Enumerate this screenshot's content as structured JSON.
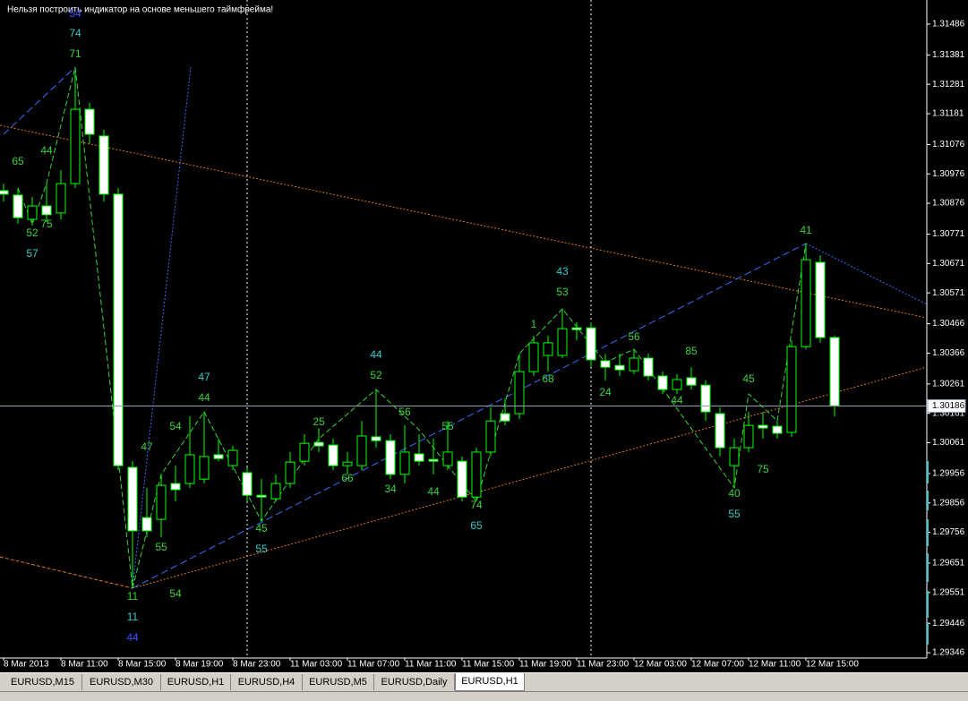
{
  "warning": "Нельзя построить индикатор на основе меньшего таймфрейма!",
  "chart_data": {
    "type": "candlestick",
    "categories": [
      "8 Mar 2013",
      null,
      null,
      null,
      "8 Mar 11:00",
      null,
      null,
      null,
      "8 Mar 15:00",
      null,
      null,
      null,
      "8 Mar 19:00",
      null,
      null,
      null,
      "8 Mar 23:00",
      null,
      null,
      null,
      "11 Mar 03:00",
      null,
      null,
      null,
      "11 Mar 07:00",
      null,
      null,
      null,
      "11 Mar 11:00",
      null,
      null,
      null,
      "11 Mar 15:00",
      null,
      null,
      null,
      "11 Mar 19:00",
      null,
      null,
      null,
      "11 Mar 23:00",
      null,
      null,
      null,
      "12 Mar 03:00",
      null,
      null,
      null,
      "12 Mar 07:00",
      null,
      null,
      null,
      "12 Mar 11:00",
      null,
      null,
      null,
      "12 Mar 15:00",
      null,
      null
    ],
    "open": [
      1.30919,
      1.30904,
      1.30821,
      1.30867,
      1.30843,
      1.30943,
      1.31196,
      1.31105,
      1.30907,
      1.29977,
      1.29806,
      1.298,
      1.29922,
      1.29922,
      1.29937,
      1.3002,
      1.29983,
      1.29959,
      1.29882,
      1.2987,
      1.29922,
      1.29998,
      1.30062,
      1.30053,
      1.29983,
      1.29983,
      1.30081,
      1.30068,
      1.29953,
      1.30023,
      1.30004,
      1.29983,
      1.29998,
      1.29876,
      1.30029,
      1.3016,
      1.3016,
      1.30303,
      1.30358,
      1.30358,
      1.30452,
      1.30452,
      1.3034,
      1.30324,
      1.30306,
      1.30349,
      1.30288,
      1.30242,
      1.30282,
      1.30257,
      1.3016,
      1.29983,
      1.30044,
      1.3012,
      1.30117,
      1.30096,
      1.30388,
      1.30675,
      1.30419
    ],
    "high": [
      1.30943,
      1.30928,
      1.30897,
      1.30943,
      1.30989,
      1.31324,
      1.31217,
      1.31126,
      1.30928,
      1.29998,
      1.29907,
      1.29953,
      1.29983,
      1.30151,
      1.30166,
      1.30075,
      1.3005,
      1.29977,
      1.29937,
      1.29953,
      1.30029,
      1.3009,
      1.30111,
      1.30075,
      1.30029,
      1.30135,
      1.30242,
      1.3009,
      1.3012,
      1.3009,
      1.30075,
      1.30135,
      1.30014,
      1.30044,
      1.30181,
      1.30212,
      1.30364,
      1.30425,
      1.30425,
      1.30516,
      1.30471,
      1.30471,
      1.30364,
      1.30364,
      1.30379,
      1.30364,
      1.30303,
      1.30294,
      1.30318,
      1.30273,
      1.30181,
      1.30075,
      1.30166,
      1.30166,
      1.30135,
      1.3041,
      1.30739,
      1.30699,
      1.30425
    ],
    "low": [
      1.30882,
      1.30806,
      1.308,
      1.30812,
      1.30821,
      1.30928,
      1.3108,
      1.30882,
      1.29968,
      1.29566,
      1.29739,
      1.29739,
      1.29861,
      1.29907,
      1.29922,
      1.29998,
      1.29968,
      1.29861,
      1.29794,
      1.29861,
      1.29907,
      1.29983,
      1.30029,
      1.29968,
      1.29953,
      1.29968,
      1.30044,
      1.29937,
      1.29922,
      1.29983,
      1.29953,
      1.29968,
      1.29861,
      1.29861,
      1.30014,
      1.3012,
      1.30142,
      1.30288,
      1.30303,
      1.30349,
      1.3041,
      1.30318,
      1.30273,
      1.30288,
      1.30294,
      1.30273,
      1.30227,
      1.30227,
      1.30242,
      1.30135,
      1.30014,
      1.29907,
      1.30029,
      1.30075,
      1.30075,
      1.30081,
      1.30379,
      1.30401,
      1.30151
    ],
    "close": [
      1.30907,
      1.30827,
      1.30867,
      1.30837,
      1.30943,
      1.31196,
      1.31111,
      1.30907,
      1.29983,
      1.29761,
      1.29761,
      1.29916,
      1.29901,
      1.3002,
      1.30014,
      1.30007,
      1.30035,
      1.29882,
      1.29876,
      1.29922,
      1.29995,
      1.30059,
      1.3005,
      1.29983,
      1.29995,
      1.30084,
      1.30068,
      1.29953,
      1.30029,
      1.29998,
      1.29998,
      1.30029,
      1.29876,
      1.30029,
      1.30135,
      1.30135,
      1.30303,
      1.30401,
      1.30401,
      1.30449,
      1.30446,
      1.30343,
      1.30318,
      1.30309,
      1.30349,
      1.30288,
      1.30242,
      1.30276,
      1.30257,
      1.30166,
      1.30044,
      1.30044,
      1.3012,
      1.30111,
      1.30093,
      1.30388,
      1.30684,
      1.30419,
      1.30187
    ],
    "ylim": [
      1.29328,
      1.31568
    ],
    "yticks": [
      1.31486,
      1.31381,
      1.31281,
      1.31181,
      1.31076,
      1.30976,
      1.30876,
      1.30771,
      1.30671,
      1.30571,
      1.30466,
      1.30366,
      1.30261,
      1.30161,
      1.30061,
      1.29956,
      1.29856,
      1.29756,
      1.29651,
      1.29551,
      1.29446,
      1.29346
    ],
    "current_price": 1.30186,
    "annotations": [
      "54",
      "74",
      "71",
      "65",
      "44",
      "52",
      "75",
      "57",
      "47",
      "55",
      "11",
      "11",
      "44",
      "54",
      "54",
      "47",
      "44",
      "45",
      "55",
      "25",
      "66",
      "44",
      "52",
      "56",
      "34",
      "44",
      "55",
      "74",
      "65",
      "1",
      "68",
      "43",
      "53",
      "24",
      "56",
      "85",
      "44",
      "45",
      "40",
      "55",
      "75",
      "41"
    ]
  },
  "tabs": [
    "EURUSD,M15",
    "EURUSD,M30",
    "EURUSD,H1",
    "EURUSD,H4",
    "EURUSD,M5",
    "EURUSD,Daily",
    "EURUSD,H1"
  ]
}
